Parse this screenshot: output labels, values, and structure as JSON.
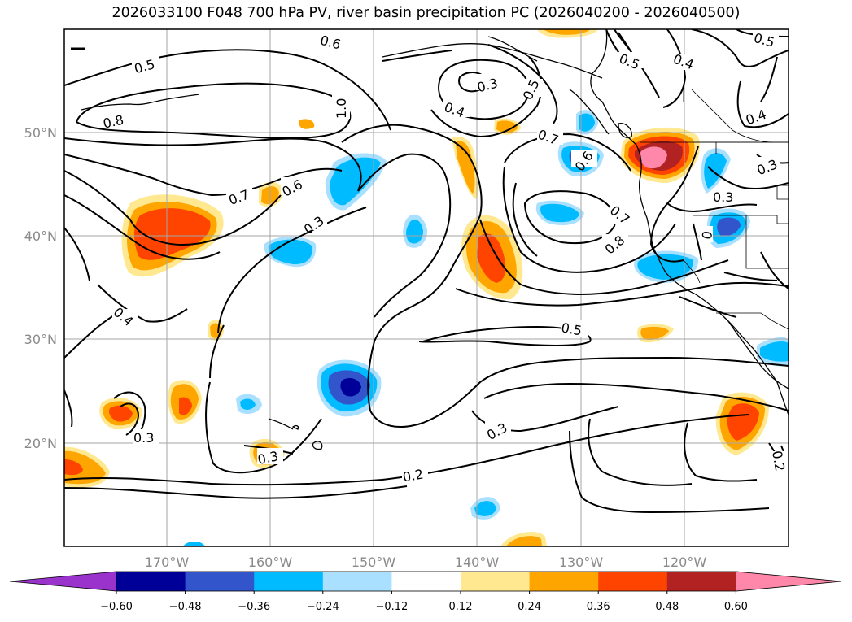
{
  "title": "2026033100 F048 700 hPa PV, river basin precipitation PC (2026040200 - 2026040500)",
  "latitude_labels": [
    "50°N",
    "40°N",
    "30°N",
    "20°N"
  ],
  "longitude_labels": [
    "170°W",
    "160°W",
    "150°W",
    "140°W",
    "130°W",
    "120°W"
  ],
  "colorbar": {
    "tick_labels": [
      "−0.60",
      "−0.48",
      "−0.36",
      "−0.24",
      "−0.12",
      "0.12",
      "0.24",
      "0.36",
      "0.48",
      "0.60"
    ],
    "colors": [
      "#9933cc",
      "#000099",
      "#3355cc",
      "#00bbff",
      "#aae0ff",
      "#ffffff",
      "#ffe88f",
      "#ffa500",
      "#ff4400",
      "#b22222",
      "#ff88aa"
    ]
  },
  "contour_labels": [
    "0.5",
    "0.8",
    "1.0",
    "0.7",
    "0.6",
    "0.3",
    "0.4",
    "0.3",
    "0.5",
    "0.4",
    "0.7",
    "0.6",
    "0.5",
    "0.4",
    "0.5",
    "0.4",
    "0.3",
    "0.3",
    "0.7",
    "0.8",
    "0",
    "0.3",
    "0.3",
    "0.5",
    "0.3",
    "0.2",
    "0.2",
    "0.6"
  ]
}
